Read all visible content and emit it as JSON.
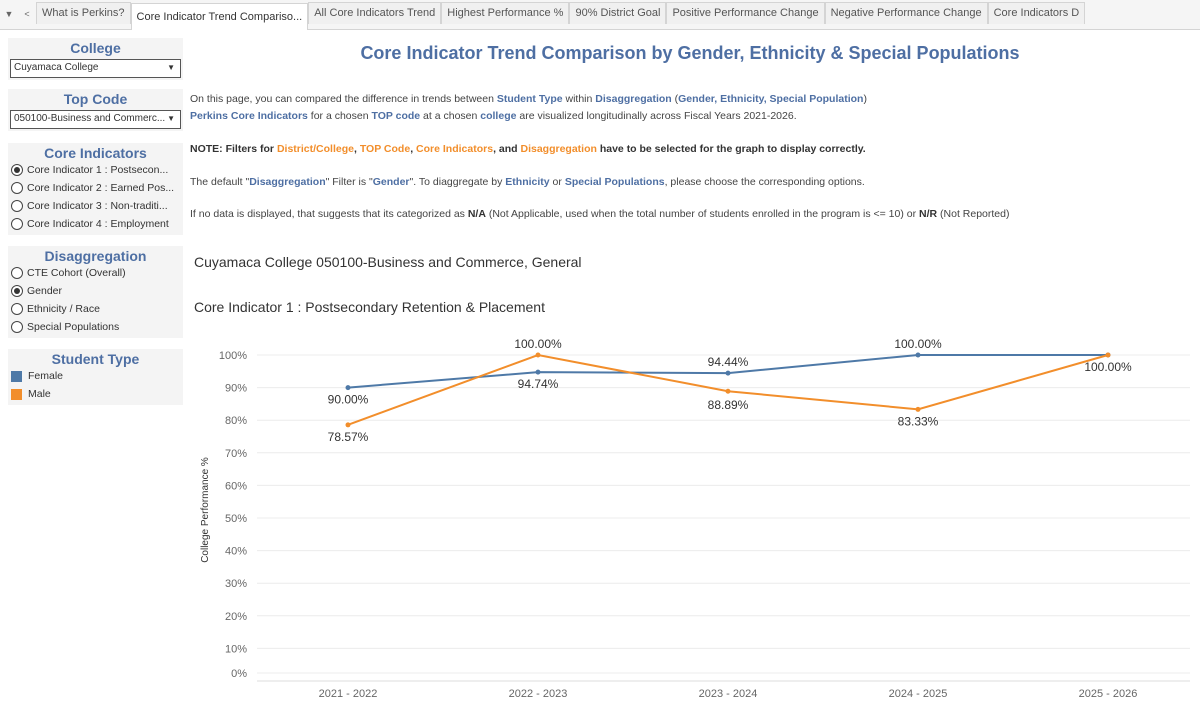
{
  "tabs": [
    "What is Perkins?",
    "Core Indicator Trend Compariso...",
    "All Core Indicators Trend",
    "Highest Performance %",
    "90% District Goal",
    "Positive Performance Change",
    "Negative Performance Change",
    "Core Indicators D"
  ],
  "active_tab": 1,
  "filters": {
    "college": {
      "title": "College",
      "value": "Cuyamaca College"
    },
    "top_code": {
      "title": "Top Code",
      "value": "050100-Business and Commerc..."
    },
    "core_indicators": {
      "title": "Core Indicators",
      "options": [
        "Core Indicator 1 : Postsecon...",
        "Core Indicator 2 : Earned Pos...",
        "Core Indicator 3 : Non-traditi...",
        "Core Indicator 4 : Employment"
      ],
      "selected": 0
    },
    "disaggregation": {
      "title": "Disaggregation",
      "options": [
        "CTE Cohort (Overall)",
        "Gender",
        "Ethnicity / Race",
        "Special Populations"
      ],
      "selected": 1
    },
    "student_type": {
      "title": "Student Type",
      "items": [
        {
          "label": "Female",
          "color": "#4e79a7"
        },
        {
          "label": "Male",
          "color": "#f28e2b"
        }
      ]
    }
  },
  "page_title": "Core Indicator Trend Comparison by Gender, Ethnicity & Special Populations",
  "paragraphs": [
    [
      {
        "t": "On this page, you can compared the difference in trends between "
      },
      {
        "t": "Student Type",
        "s": "b"
      },
      {
        "t": " within "
      },
      {
        "t": "Disaggregation",
        "s": "b"
      },
      {
        "t": " ("
      },
      {
        "t": "Gender, Ethnicity, Special Population",
        "s": "b"
      },
      {
        "t": ")"
      }
    ],
    [
      {
        "t": "Perkins Core Indicators",
        "s": "b"
      },
      {
        "t": " for a chosen "
      },
      {
        "t": "TOP code",
        "s": "b"
      },
      {
        "t": " at a chosen "
      },
      {
        "t": "college",
        "s": "b"
      },
      {
        "t": " are visualized longitudinally across Fiscal Years 2021-2026."
      }
    ],
    [
      {
        "t": "NOTE: Filters for ",
        "s": "k"
      },
      {
        "t": "District/College",
        "s": "o"
      },
      {
        "t": ", ",
        "s": "k"
      },
      {
        "t": "TOP Code",
        "s": "o"
      },
      {
        "t": ", ",
        "s": "k"
      },
      {
        "t": "Core Indicators",
        "s": "o"
      },
      {
        "t": ", and ",
        "s": "k"
      },
      {
        "t": "Disaggregation",
        "s": "o"
      },
      {
        "t": " have to be selected for the graph to display correctly.",
        "s": "k"
      }
    ],
    [
      {
        "t": "The default \""
      },
      {
        "t": "Disaggregation",
        "s": "b"
      },
      {
        "t": "\" Filter is \""
      },
      {
        "t": "Gender",
        "s": "b"
      },
      {
        "t": "\". To diaggregate by "
      },
      {
        "t": "Ethnicity",
        "s": "b"
      },
      {
        "t": " or "
      },
      {
        "t": "Special Populations",
        "s": "b"
      },
      {
        "t": ", please choose the corresponding options."
      }
    ],
    [
      {
        "t": "If no data is displayed, that suggests that its categorized as "
      },
      {
        "t": "N/A",
        "s": "k"
      },
      {
        "t": " (Not Applicable, used when the total number of students enrolled in the program is <= 10) or "
      },
      {
        "t": "N/R",
        "s": "k"
      },
      {
        "t": " (Not Reported)"
      }
    ]
  ],
  "subtitle1": "Cuyamaca College 050100-Business and Commerce, General",
  "subtitle2": "Core Indicator 1 : Postsecondary Retention & Placement",
  "chart_data": {
    "type": "line",
    "ylabel": "College Performance %",
    "xlabel": "",
    "categories": [
      "2021 - 2022",
      "2022 - 2023",
      "2023 - 2024",
      "2024 - 2025",
      "2025 - 2026"
    ],
    "ylim": [
      0,
      100
    ],
    "yticks": [
      "0%",
      "10%",
      "20%",
      "30%",
      "40%",
      "50%",
      "60%",
      "70%",
      "80%",
      "90%",
      "100%"
    ],
    "series": [
      {
        "name": "Female",
        "color": "#4e79a7",
        "values": [
          90.0,
          94.74,
          94.44,
          100.0,
          100.0
        ],
        "labels": [
          "90.00%",
          "94.74%",
          "94.44%",
          "100.00%",
          ""
        ]
      },
      {
        "name": "Male",
        "color": "#f28e2b",
        "values": [
          78.57,
          100.0,
          88.89,
          83.33,
          100.0
        ],
        "labels": [
          "78.57%",
          "100.00%",
          "88.89%",
          "83.33%",
          "100.00%"
        ]
      }
    ],
    "grid": true,
    "legend": "left-panel"
  }
}
